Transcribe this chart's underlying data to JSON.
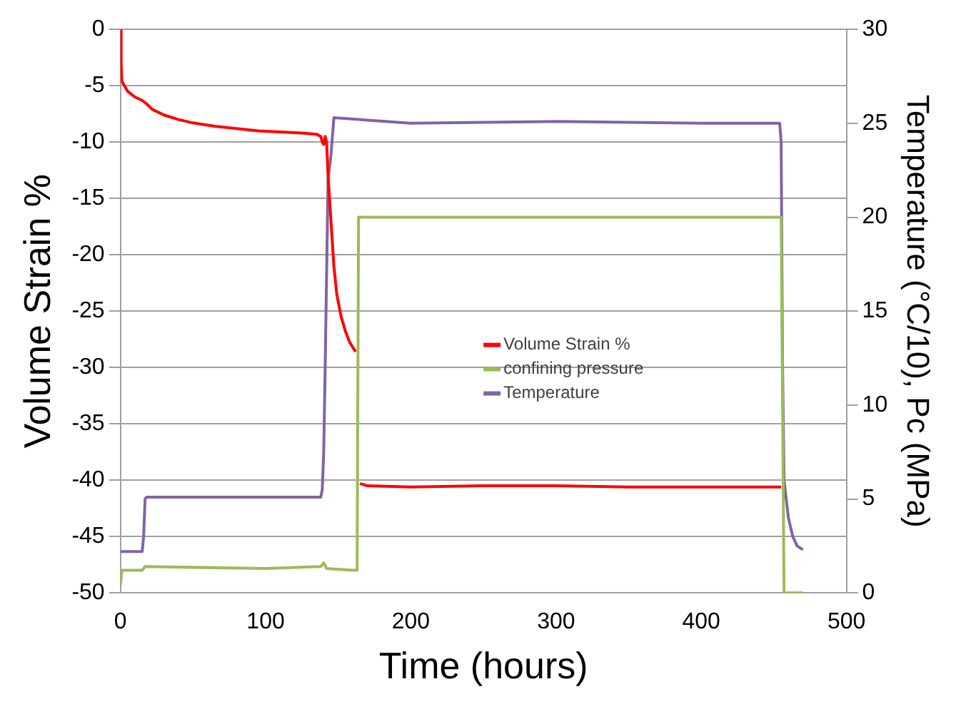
{
  "chart_data": {
    "type": "line",
    "xlabel": "Time (hours)",
    "ylabel": "Volume Strain %",
    "y2label": "Temperature (°C/10), Pc (MPa)",
    "xlim": [
      0,
      500
    ],
    "xticks": [
      0,
      100,
      200,
      300,
      400,
      500
    ],
    "ylim": [
      -50,
      0
    ],
    "yticks": [
      -50,
      -45,
      -40,
      -35,
      -30,
      -25,
      -20,
      -15,
      -10,
      -5,
      0
    ],
    "y2lim": [
      0,
      30
    ],
    "y2ticks": [
      0,
      5,
      10,
      15,
      20,
      25,
      30
    ],
    "grid": "y",
    "legend": "right",
    "marker": "none",
    "line_style": "solid",
    "series": [
      {
        "name": "Volume Strain %",
        "color": "#ff0000",
        "x": [
          0,
          0.5,
          1,
          5,
          10,
          15,
          18,
          22,
          30,
          40,
          50,
          65,
          80,
          95,
          110,
          125,
          135,
          138,
          139,
          140,
          141,
          142,
          143,
          145,
          147,
          149,
          152,
          155,
          158,
          162,
          163,
          165,
          170,
          200,
          250,
          300,
          350,
          400,
          455
        ],
        "values": [
          0,
          -3,
          -4.6,
          -5.5,
          -6,
          -6.3,
          -6.6,
          -7.1,
          -7.6,
          -8,
          -8.3,
          -8.6,
          -8.8,
          -9,
          -9.1,
          -9.2,
          -9.3,
          -9.5,
          -10,
          -10.2,
          -9.5,
          -10,
          -13,
          -17,
          -21,
          -23.5,
          -25.5,
          -26.8,
          -27.8,
          -28.6,
          null,
          -40.3,
          -40.5,
          -40.6,
          -40.5,
          -40.5,
          -40.6,
          -40.6,
          -40.6
        ]
      },
      {
        "name": "confining pressure",
        "color": "#9bbb59",
        "axis": "y2",
        "x": [
          0,
          1,
          15,
          17,
          100,
          138,
          140,
          142,
          160,
          163,
          164,
          165,
          200,
          300,
          400,
          454,
          455,
          456,
          457,
          460,
          470
        ],
        "values": [
          0.4,
          1.2,
          1.2,
          1.4,
          1.3,
          1.4,
          1.6,
          1.3,
          1.2,
          1.2,
          20,
          20,
          20,
          20,
          20,
          20,
          20,
          10,
          0,
          0,
          0
        ]
      },
      {
        "name": "Temperature",
        "color": "#8064a2",
        "axis": "y2",
        "x": [
          0,
          15,
          16,
          17,
          18,
          100,
          138,
          139,
          140,
          141,
          142,
          143,
          145,
          147,
          200,
          300,
          400,
          454,
          455,
          456,
          457,
          460,
          463,
          466,
          470
        ],
        "values": [
          2.2,
          2.2,
          3,
          5,
          5.1,
          5.1,
          5.1,
          5.5,
          7.5,
          12,
          17,
          22,
          23.3,
          25.3,
          25,
          25.1,
          25,
          25,
          24,
          12,
          6,
          4,
          3,
          2.5,
          2.3
        ]
      }
    ]
  }
}
